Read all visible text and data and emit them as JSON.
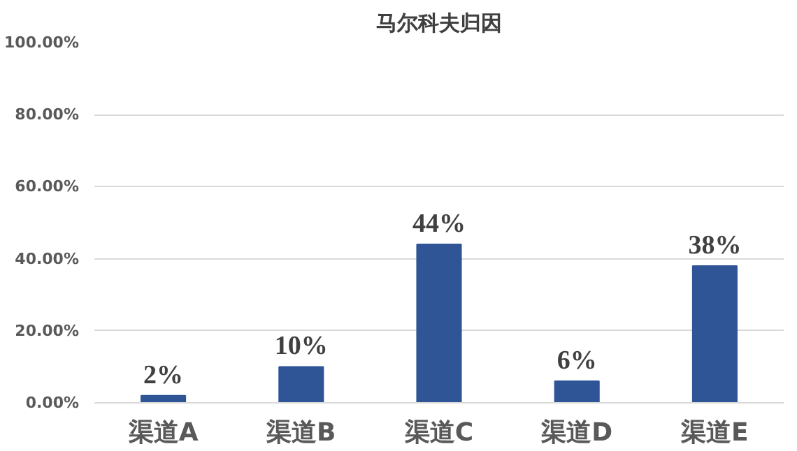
{
  "chart_data": {
    "type": "bar",
    "title": "马尔科夫归因",
    "categories": [
      "渠道A",
      "渠道B",
      "渠道C",
      "渠道D",
      "渠道E"
    ],
    "series": [
      {
        "color": "#2f5597",
        "values": [
          2,
          10,
          44,
          6,
          38
        ],
        "value_labels": [
          "2%",
          "10%",
          "44%",
          "6%",
          "38%"
        ]
      }
    ],
    "ylim": [
      0,
      100
    ],
    "yticks": [
      {
        "value": 0,
        "label": "0.00%"
      },
      {
        "value": 20,
        "label": "20.00%"
      },
      {
        "value": 40,
        "label": "40.00%"
      },
      {
        "value": 60,
        "label": "60.00%"
      },
      {
        "value": 80,
        "label": "80.00%"
      },
      {
        "value": 100,
        "label": "100.00%"
      }
    ],
    "grid": "y"
  }
}
